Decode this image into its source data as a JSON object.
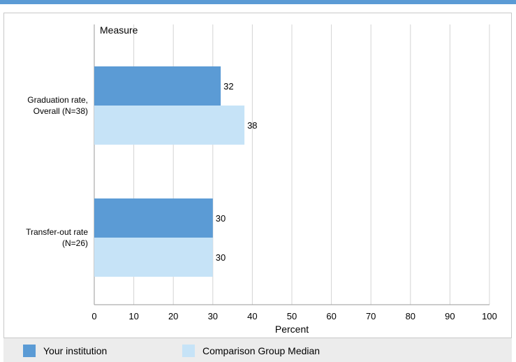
{
  "chart_data": {
    "type": "bar",
    "orientation": "horizontal",
    "title": "",
    "category_axis_title": "Measure",
    "xlabel": "Percent",
    "xlim": [
      0,
      100
    ],
    "ticks": [
      0,
      10,
      20,
      30,
      40,
      50,
      60,
      70,
      80,
      90,
      100
    ],
    "grid": true,
    "legend_position": "bottom",
    "categories": [
      [
        "Graduation rate,",
        "Overall (N=38)"
      ],
      [
        "Transfer-out rate",
        "(N=26)"
      ]
    ],
    "series": [
      {
        "name": "Your institution",
        "color": "#5b9bd5",
        "values": [
          32,
          30
        ]
      },
      {
        "name": "Comparison Group Median",
        "color": "#c6e3f7",
        "values": [
          38,
          30
        ]
      }
    ]
  }
}
